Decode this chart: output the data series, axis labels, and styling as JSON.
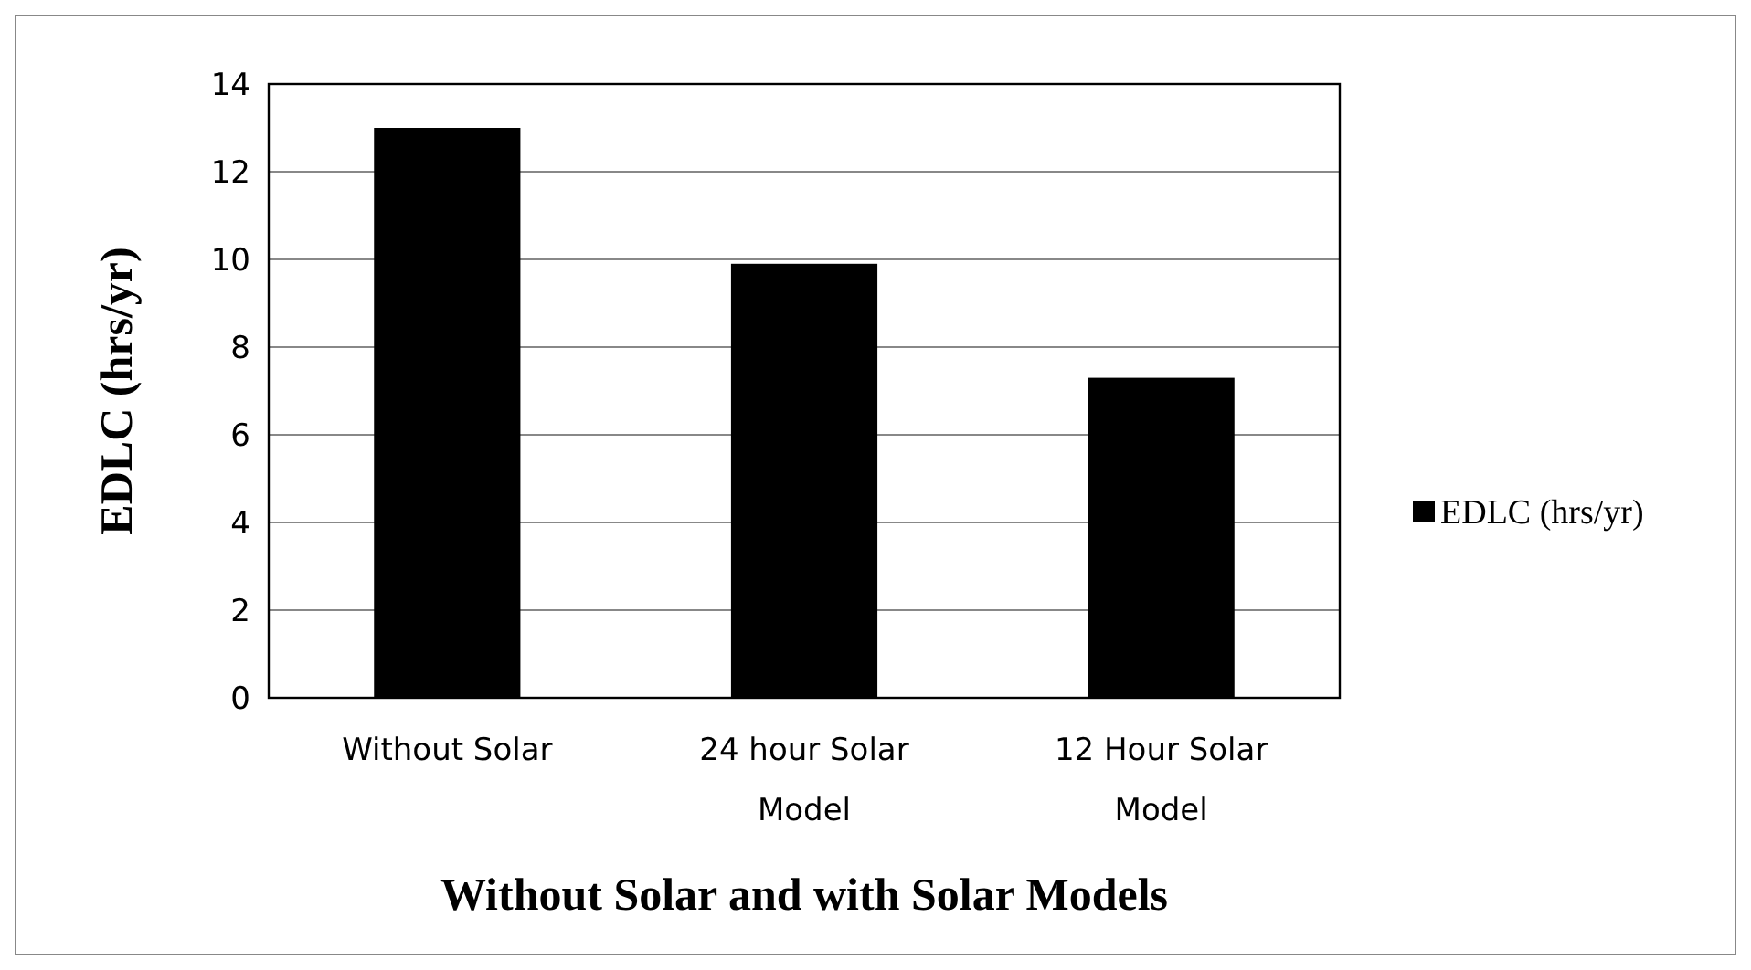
{
  "chart_data": {
    "type": "bar",
    "xlabel": "Without Solar and with Solar Models",
    "ylabel": "EDLC (hrs/yr)",
    "categories": [
      "Without Solar",
      "24 hour Solar Model",
      "12 Hour Solar Model"
    ],
    "series": [
      {
        "name": "EDLC (hrs/yr)",
        "color": "#000000",
        "values": [
          13.0,
          9.9,
          7.3
        ]
      }
    ],
    "ylim": [
      0,
      14
    ],
    "yticks": [
      0,
      2,
      4,
      6,
      8,
      10,
      12,
      14
    ],
    "grid": "y",
    "legend": "right"
  }
}
